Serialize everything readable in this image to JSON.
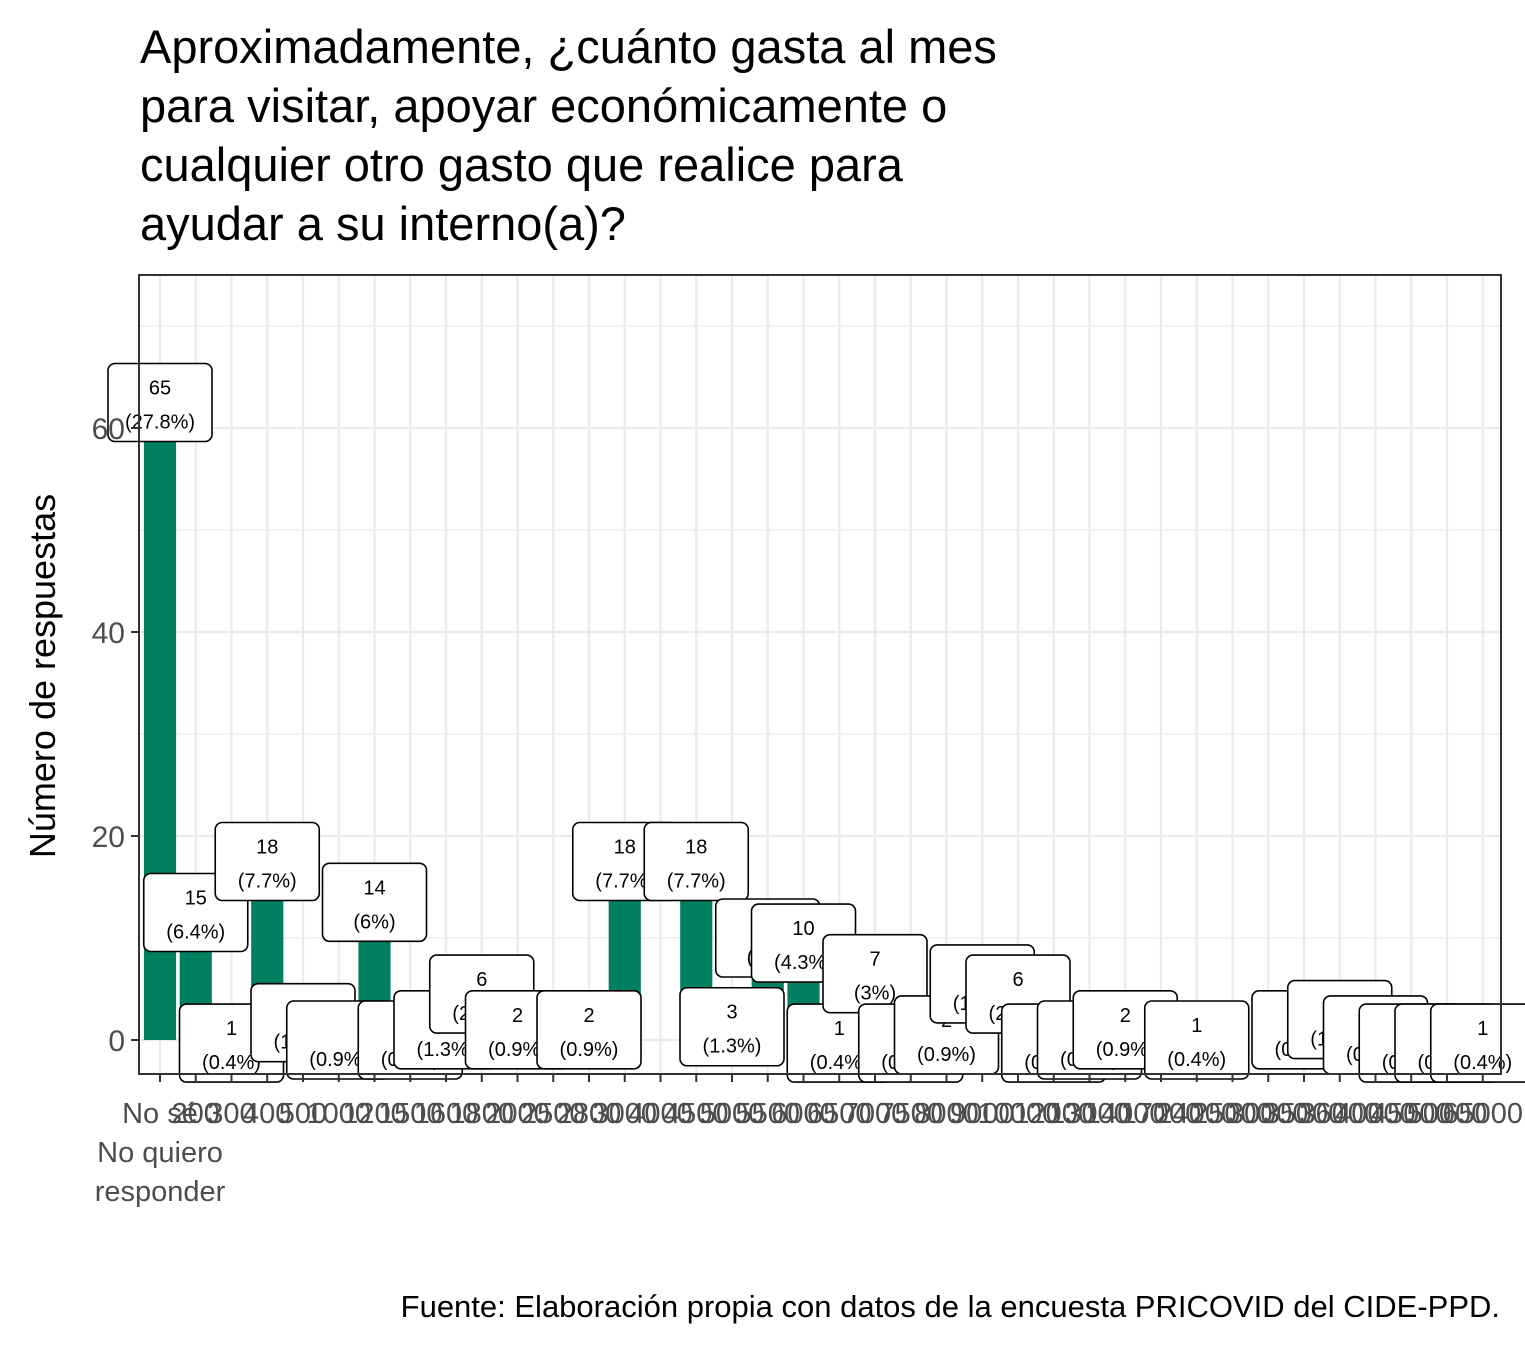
{
  "chart_data": {
    "type": "bar",
    "title": "Aproximadamente, ¿cuánto gasta al mes para visitar, apoyar económicamente o cualquier otro gasto que realice para ayudar a su interno(a)?",
    "title_lines": [
      "Aproximadamente, ¿cuánto gasta al mes",
      "para visitar, apoyar económicamente o",
      "cualquier otro gasto que realice para",
      "ayudar a su interno(a)?"
    ],
    "xlabel": "",
    "ylabel": "Número de respuestas",
    "caption": "Fuente: Elaboración propia con datos de la encuesta PRICOVID del CIDE-PPD.",
    "ylim": [
      -3,
      74
    ],
    "yticks": [
      0,
      20,
      40,
      60
    ],
    "grid": true,
    "bar_color": "#008060",
    "n_categories": 38,
    "first_tick_label_lines": [
      "No sé",
      "No quiero",
      "responder"
    ],
    "tick_labels": [
      "No sé",
      "200",
      "300",
      "400",
      "500",
      "1000",
      "1200",
      "1500",
      "1600",
      "1800",
      "2000",
      "2500",
      "2800",
      "3000",
      "4000",
      "4500",
      "5000",
      "5500",
      "6000",
      "6500",
      "7000",
      "7500",
      "8000",
      "9000",
      "10000",
      "12000",
      "13000",
      "14000",
      "17000",
      "24000",
      "25000",
      "30000",
      "35000",
      "36000",
      "40000",
      "45000",
      "50000",
      "65000"
    ],
    "bars": [
      {
        "index": 0,
        "value": 65,
        "label_count": "65",
        "label_pct": "(27.8%)",
        "label_y": 62.5
      },
      {
        "index": 1,
        "value": 15,
        "label_count": "15",
        "label_pct": "(6.4%)",
        "label_y": 12.5
      },
      {
        "index": 2,
        "value": 1,
        "label_count": "1",
        "label_pct": "(0.4%)",
        "label_y": -0.3
      },
      {
        "index": 3,
        "value": 18,
        "label_count": "18",
        "label_pct": "(7.7%)",
        "label_y": 17.5
      },
      {
        "index": 4,
        "value": 4,
        "label_count": "4",
        "label_pct": "(1.7%)",
        "label_y": 1.7
      },
      {
        "index": 5,
        "value": 2,
        "label_count": "",
        "label_pct": "(0.9%)",
        "label_y": 0.0
      },
      {
        "index": 6,
        "value": 14,
        "label_count": "14",
        "label_pct": "(6%)",
        "label_y": 13.5
      },
      {
        "index": 7,
        "value": 2,
        "label_count": "",
        "label_pct": "(0.9%)",
        "label_y": 0.0
      },
      {
        "index": 8,
        "value": 3,
        "label_count": "",
        "label_pct": "(1.3%)",
        "label_y": 1.0
      },
      {
        "index": 9,
        "value": 6,
        "label_count": "6",
        "label_pct": "(2.6%)",
        "label_y": 4.5
      },
      {
        "index": 10,
        "value": 2,
        "label_count": "2",
        "label_pct": "(0.9%)",
        "label_y": 1.0
      },
      {
        "index": 12,
        "value": 2,
        "label_count": "2",
        "label_pct": "(0.9%)",
        "label_y": 1.0
      },
      {
        "index": 13,
        "value": 18,
        "label_count": "18",
        "label_pct": "(7.7%)",
        "label_y": 17.5
      },
      {
        "index": 15,
        "value": 18,
        "label_count": "18",
        "label_pct": "(7.7%)",
        "label_y": 17.5
      },
      {
        "index": 16,
        "value": 3,
        "label_count": "3",
        "label_pct": "(1.3%)",
        "label_y": 1.3
      },
      {
        "index": 17,
        "value": 7,
        "label_count": "",
        "label_pct": "(3%)",
        "label_y": 10.0
      },
      {
        "index": 18,
        "value": 10,
        "label_count": "10",
        "label_pct": "(4.3%)",
        "label_y": 9.5
      },
      {
        "index": 19,
        "value": 1,
        "label_count": "1",
        "label_pct": "(0.4%)",
        "label_y": -0.3
      },
      {
        "index": 20,
        "value": 7,
        "label_count": "7",
        "label_pct": "(3%)",
        "label_y": 6.5
      },
      {
        "index": 21,
        "value": 2,
        "label_count": "",
        "label_pct": "(0.9%)",
        "label_y": -0.3
      },
      {
        "index": 22,
        "value": 2,
        "label_count": "2",
        "label_pct": "(0.9%)",
        "label_y": 0.5
      },
      {
        "index": 23,
        "value": 4,
        "label_count": "",
        "label_pct": "(1.7%)",
        "label_y": 5.5
      },
      {
        "index": 24,
        "value": 6,
        "label_count": "6",
        "label_pct": "(2.6%)",
        "label_y": 4.5
      },
      {
        "index": 25,
        "value": 1,
        "label_count": "",
        "label_pct": "(0.4%)",
        "label_y": -0.3
      },
      {
        "index": 26,
        "value": 1,
        "label_count": "1",
        "label_pct": "(0.4%)",
        "label_y": 0.0
      },
      {
        "index": 27,
        "value": 2,
        "label_count": "2",
        "label_pct": "(0.9%)",
        "label_y": 1.0
      },
      {
        "index": 29,
        "value": 1,
        "label_count": "1",
        "label_pct": "(0.4%)",
        "label_y": 0.0
      },
      {
        "index": 32,
        "value": 1,
        "label_count": "",
        "label_pct": "(0.4%)",
        "label_y": 1.0
      },
      {
        "index": 33,
        "value": 3,
        "label_count": "",
        "label_pct": "(1.3%)",
        "label_y": 2.0
      },
      {
        "index": 34,
        "value": 1,
        "label_count": "",
        "label_pct": "(0.4%)",
        "label_y": 0.5
      },
      {
        "index": 35,
        "value": 1,
        "label_count": "",
        "label_pct": "(0.4%)",
        "label_y": -0.3
      },
      {
        "index": 36,
        "value": 1,
        "label_count": "",
        "label_pct": "(0.4%)",
        "label_y": -0.3
      },
      {
        "index": 37,
        "value": 1,
        "label_count": "1",
        "label_pct": "(0.4%)",
        "label_y": -0.3
      }
    ]
  }
}
